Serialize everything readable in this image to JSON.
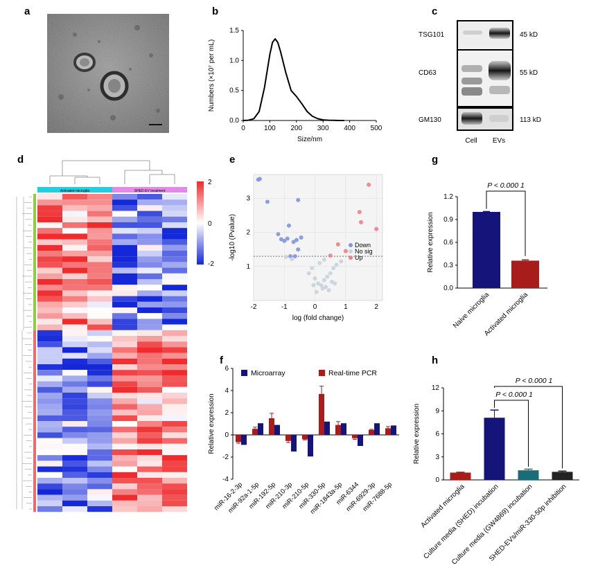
{
  "panels": {
    "a": "a",
    "b": "b",
    "c": "c",
    "d": "d",
    "e": "e",
    "f": "f",
    "g": "g",
    "h": "h"
  },
  "panel_a": {
    "scale_bar": true
  },
  "panel_c": {
    "bands": [
      {
        "protein": "TSG101",
        "size": "45 kD"
      },
      {
        "protein": "CD63",
        "size": "55 kD"
      },
      {
        "protein": "GM130",
        "size": "113 kD"
      }
    ],
    "lanes": [
      "Cell",
      "EVs"
    ]
  },
  "panel_d": {
    "groups": [
      "Activated microglia",
      "SHED-EV treatment"
    ],
    "colorbar_ticks": [
      "2",
      "0",
      "-2"
    ],
    "colors": {
      "high": "#ef2b2d",
      "mid": "#ffffff",
      "low": "#1428d8"
    }
  },
  "chart_data": [
    {
      "id": "b",
      "type": "line",
      "xlabel": "Size/nm",
      "ylabel": "Numbers (×10⁷ per mL)",
      "xlim": [
        0,
        500
      ],
      "ylim": [
        0,
        1.5
      ],
      "x_ticks": [
        "0",
        "100",
        "200",
        "300",
        "400",
        "500"
      ],
      "y_ticks": [
        "0.0",
        "0.5",
        "1.0",
        "1.5"
      ],
      "x": [
        0,
        20,
        40,
        60,
        80,
        100,
        110,
        120,
        130,
        140,
        160,
        180,
        200,
        220,
        240,
        260,
        280,
        300,
        320,
        340,
        360,
        380
      ],
      "y": [
        0,
        0.005,
        0.03,
        0.15,
        0.55,
        1.1,
        1.3,
        1.36,
        1.3,
        1.15,
        0.8,
        0.5,
        0.4,
        0.28,
        0.15,
        0.07,
        0.03,
        0.01,
        0.005,
        0.002,
        0,
        0
      ]
    },
    {
      "id": "e",
      "type": "scatter",
      "xlabel": "log (fold change)",
      "ylabel": "-log10 (Pvalue)",
      "xlim": [
        -2,
        2.2
      ],
      "ylim": [
        0,
        3.7
      ],
      "x_ticks": [
        "-2",
        "-1",
        "0",
        "1",
        "2"
      ],
      "y_ticks": [
        "1",
        "2",
        "3"
      ],
      "threshold": 1.3,
      "legend": [
        "Down",
        "No sig",
        "Up"
      ],
      "colors": {
        "Down": "#7f95e0",
        "No sig": "#c9d3dc",
        "Up": "#f07f84"
      },
      "points": [
        {
          "x": -1.85,
          "y": 3.55,
          "g": "Down"
        },
        {
          "x": -1.8,
          "y": 3.57,
          "g": "Down"
        },
        {
          "x": -1.55,
          "y": 2.9,
          "g": "Down"
        },
        {
          "x": -0.55,
          "y": 2.95,
          "g": "Down"
        },
        {
          "x": -0.85,
          "y": 2.2,
          "g": "Down"
        },
        {
          "x": -1.2,
          "y": 1.95,
          "g": "Down"
        },
        {
          "x": -1.1,
          "y": 1.8,
          "g": "Down"
        },
        {
          "x": -1.0,
          "y": 1.75,
          "g": "Down"
        },
        {
          "x": -0.9,
          "y": 1.82,
          "g": "Down"
        },
        {
          "x": -0.7,
          "y": 1.72,
          "g": "Down"
        },
        {
          "x": -0.6,
          "y": 1.78,
          "g": "Down"
        },
        {
          "x": -0.45,
          "y": 1.85,
          "g": "Down"
        },
        {
          "x": -0.55,
          "y": 1.5,
          "g": "Down"
        },
        {
          "x": -0.8,
          "y": 1.3,
          "g": "Down"
        },
        {
          "x": -0.65,
          "y": 1.3,
          "g": "Down"
        },
        {
          "x": 1.75,
          "y": 3.4,
          "g": "Up"
        },
        {
          "x": 1.45,
          "y": 2.6,
          "g": "Up"
        },
        {
          "x": 1.5,
          "y": 2.3,
          "g": "Up"
        },
        {
          "x": 2.0,
          "y": 2.1,
          "g": "Up"
        },
        {
          "x": 0.75,
          "y": 1.65,
          "g": "Up"
        },
        {
          "x": 1.0,
          "y": 1.45,
          "g": "Up"
        },
        {
          "x": 0.5,
          "y": 1.32,
          "g": "Up"
        },
        {
          "x": -0.95,
          "y": 1.28,
          "g": "No sig"
        },
        {
          "x": -0.75,
          "y": 1.22,
          "g": "No sig"
        },
        {
          "x": -0.2,
          "y": 0.8,
          "g": "No sig"
        },
        {
          "x": 0.0,
          "y": 0.65,
          "g": "No sig"
        },
        {
          "x": 0.1,
          "y": 0.5,
          "g": "No sig"
        },
        {
          "x": 0.2,
          "y": 0.45,
          "g": "No sig"
        },
        {
          "x": 0.3,
          "y": 0.6,
          "g": "No sig"
        },
        {
          "x": 0.4,
          "y": 0.7,
          "g": "No sig"
        },
        {
          "x": 0.5,
          "y": 0.8,
          "g": "No sig"
        },
        {
          "x": 0.6,
          "y": 0.95,
          "g": "No sig"
        },
        {
          "x": 0.7,
          "y": 1.05,
          "g": "No sig"
        },
        {
          "x": 0.85,
          "y": 1.15,
          "g": "No sig"
        },
        {
          "x": 0.3,
          "y": 1.2,
          "g": "No sig"
        },
        {
          "x": 0.15,
          "y": 1.1,
          "g": "No sig"
        },
        {
          "x": -0.1,
          "y": 0.95,
          "g": "No sig"
        },
        {
          "x": 0.25,
          "y": 0.35,
          "g": "No sig"
        },
        {
          "x": 0.35,
          "y": 0.4,
          "g": "No sig"
        },
        {
          "x": 0.55,
          "y": 0.55,
          "g": "No sig"
        },
        {
          "x": 0.65,
          "y": 0.5,
          "g": "No sig"
        },
        {
          "x": 0.45,
          "y": 0.3,
          "g": "No sig"
        },
        {
          "x": 0.05,
          "y": 0.25,
          "g": "No sig"
        },
        {
          "x": -0.05,
          "y": 0.45,
          "g": "No sig"
        }
      ]
    },
    {
      "id": "f",
      "type": "bar",
      "ylabel": "Relative expression",
      "ylim": [
        -4,
        6
      ],
      "y_ticks": [
        "-4",
        "-2",
        "0",
        "2",
        "4",
        "6"
      ],
      "categories": [
        "miR-16-2-3p",
        "miR-92a-1-5p",
        "miR-192-5p",
        "miR-210-3p",
        "miR-210-5p",
        "miR-330-5p",
        "miR-1843a-5p",
        "miR-6344",
        "miR-6929-3p",
        "miR-7688-5p"
      ],
      "series": [
        {
          "name": "Microarray",
          "color": "#14147a",
          "values": [
            -0.9,
            1.05,
            0.9,
            -1.5,
            -1.95,
            1.2,
            1.05,
            -1.0,
            1.05,
            0.85
          ],
          "err": [
            0,
            0,
            0,
            0,
            0,
            0,
            0,
            0,
            0,
            0
          ]
        },
        {
          "name": "Real-time PCR",
          "color": "#a81c1c",
          "values": [
            -0.65,
            0.55,
            1.5,
            -0.55,
            -0.4,
            3.7,
            0.9,
            -0.3,
            0.45,
            0.6
          ],
          "err": [
            0.1,
            0.15,
            0.45,
            0.15,
            0.05,
            0.7,
            0.3,
            0.1,
            0.05,
            0.15
          ]
        }
      ]
    },
    {
      "id": "g",
      "type": "bar",
      "ylabel": "Relative expression",
      "ylim": [
        0,
        1.2
      ],
      "y_ticks": [
        "0.0",
        "0.3",
        "0.6",
        "0.9",
        "1.2"
      ],
      "categories": [
        "Naive microglia",
        "Activated microglia"
      ],
      "values": [
        1.0,
        0.36
      ],
      "err": [
        0.005,
        0.01
      ],
      "colors": [
        "#14147a",
        "#a81c1c"
      ],
      "annotation": "P < 0.000 1"
    },
    {
      "id": "h",
      "type": "bar",
      "ylabel": "Relative expression",
      "ylim": [
        0,
        12
      ],
      "y_ticks": [
        "0",
        "3",
        "6",
        "9",
        "12"
      ],
      "categories": [
        "Activated microglia",
        "Culture media (SHED) incubation",
        "Culture media (GW4869) incubation",
        "SHED-EVs/miR-330-50p inhibition"
      ],
      "values": [
        0.95,
        8.1,
        1.25,
        1.05
      ],
      "err": [
        0.05,
        1.0,
        0.15,
        0.1
      ],
      "colors": [
        "#a81c1c",
        "#14147a",
        "#1a6c77",
        "#222222"
      ],
      "annotations": [
        "P < 0.000 1",
        "P < 0.000 1"
      ]
    }
  ]
}
